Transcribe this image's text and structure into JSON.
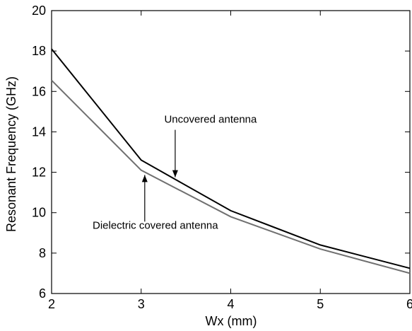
{
  "chart_data": {
    "type": "line",
    "title": "",
    "xlabel": "Wx (mm)",
    "ylabel": "Resonant Frequency (GHz)",
    "xlim": [
      2,
      6
    ],
    "ylim": [
      6,
      20
    ],
    "x_ticks": [
      "2",
      "3",
      "4",
      "5",
      "6"
    ],
    "y_ticks": [
      "6",
      "8",
      "10",
      "12",
      "14",
      "16",
      "18",
      "20"
    ],
    "grid": false,
    "x": [
      2,
      3,
      4,
      5,
      6
    ],
    "series": [
      {
        "name": "Uncovered antenna",
        "values": [
          18.1,
          12.6,
          10.1,
          8.4,
          7.25
        ],
        "color": "#000000"
      },
      {
        "name": "Dielectric covered antenna",
        "values": [
          16.55,
          12.1,
          9.8,
          8.2,
          7.0
        ],
        "color": "#707070"
      }
    ],
    "annotations": [
      {
        "text": "Uncovered antenna",
        "target_series": 0,
        "arrow_at_x": 3.38,
        "direction": "down"
      },
      {
        "text": "Dielectric covered antenna",
        "target_series": 1,
        "arrow_at_x": 3.04,
        "direction": "up"
      }
    ]
  }
}
